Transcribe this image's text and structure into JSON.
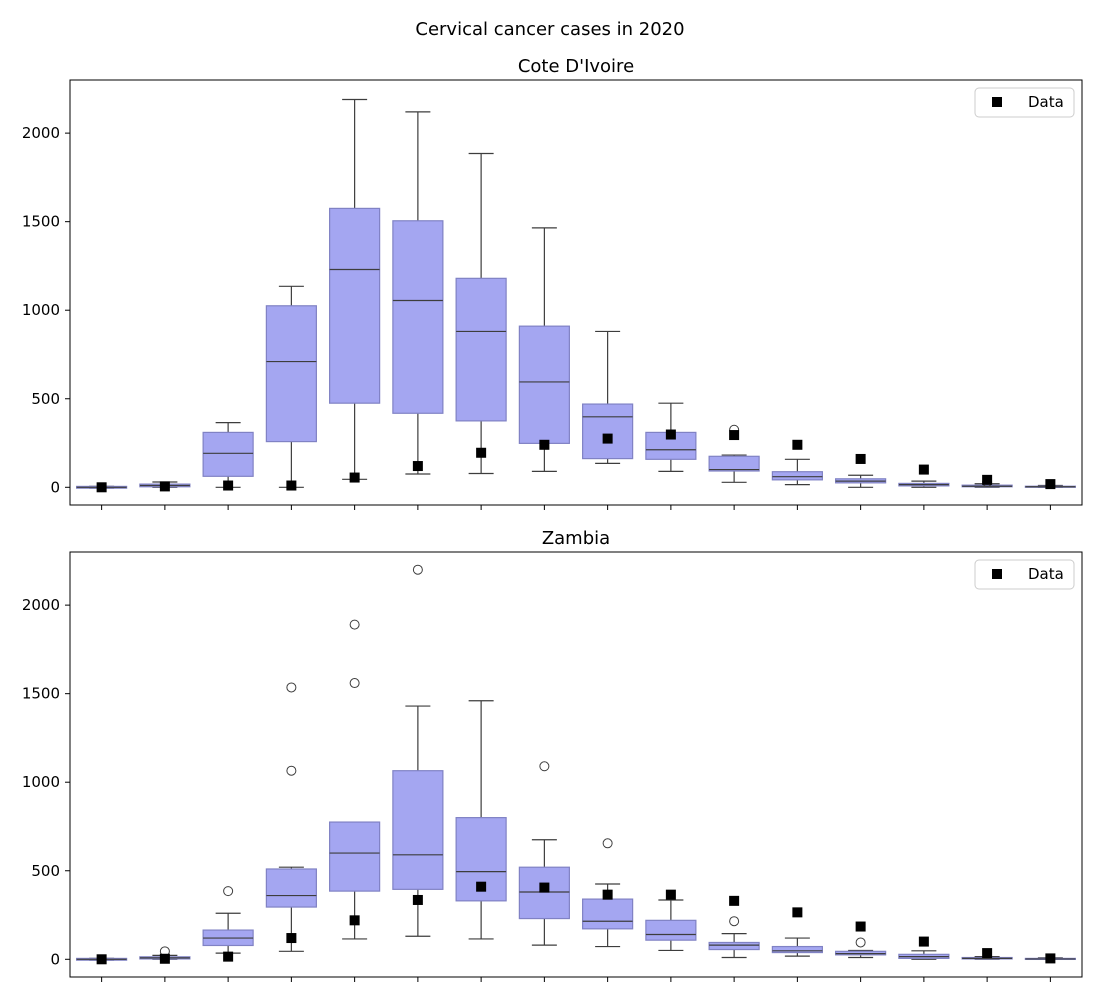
{
  "chart_data": {
    "title": "Cervical cancer cases in 2020",
    "type": "box",
    "colors": {
      "box_fill": "#a4a6f1",
      "box_edge": "#8082c4",
      "line": "#3d3d3d",
      "marker": "#000000"
    },
    "legend": {
      "label": "Data",
      "placement": "top-right"
    },
    "x_tick_labels_visible": false,
    "ylim": [
      -100,
      2300
    ],
    "yticks": [
      0,
      500,
      1000,
      1500,
      2000
    ],
    "panels": [
      {
        "title": "Cote D'Ivoire",
        "groups": [
          {
            "whislo": -5,
            "q1": -5,
            "med": 0,
            "q3": 5,
            "whishi": 5,
            "fliers": [],
            "data": 0
          },
          {
            "whislo": 0,
            "q1": 3,
            "med": 10,
            "q3": 18,
            "whishi": 30,
            "fliers": [],
            "data": 5
          },
          {
            "whislo": 0,
            "q1": 62,
            "med": 192,
            "q3": 310,
            "whishi": 365,
            "fliers": [],
            "data": 10
          },
          {
            "whislo": 0,
            "q1": 258,
            "med": 710,
            "q3": 1025,
            "whishi": 1135,
            "fliers": [],
            "data": 10
          },
          {
            "whislo": 45,
            "q1": 475,
            "med": 1230,
            "q3": 1575,
            "whishi": 2190,
            "fliers": [],
            "data": 55
          },
          {
            "whislo": 75,
            "q1": 418,
            "med": 1055,
            "q3": 1505,
            "whishi": 2120,
            "fliers": [],
            "data": 120
          },
          {
            "whislo": 78,
            "q1": 375,
            "med": 880,
            "q3": 1180,
            "whishi": 1885,
            "fliers": [],
            "data": 195
          },
          {
            "whislo": 90,
            "q1": 248,
            "med": 595,
            "q3": 910,
            "whishi": 1465,
            "fliers": [],
            "data": 240
          },
          {
            "whislo": 135,
            "q1": 162,
            "med": 398,
            "q3": 470,
            "whishi": 880,
            "fliers": [],
            "data": 275
          },
          {
            "whislo": 90,
            "q1": 158,
            "med": 212,
            "q3": 310,
            "whishi": 475,
            "fliers": [],
            "data": 298
          },
          {
            "whislo": 28,
            "q1": 92,
            "med": 100,
            "q3": 175,
            "whishi": 182,
            "fliers": [
              325
            ],
            "data": 295
          },
          {
            "whislo": 15,
            "q1": 42,
            "med": 60,
            "q3": 88,
            "whishi": 158,
            "fliers": [],
            "data": 240
          },
          {
            "whislo": 0,
            "q1": 25,
            "med": 35,
            "q3": 48,
            "whishi": 68,
            "fliers": [],
            "data": 160
          },
          {
            "whislo": 0,
            "q1": 8,
            "med": 15,
            "q3": 22,
            "whishi": 35,
            "fliers": [],
            "data": 100
          },
          {
            "whislo": 0,
            "q1": 3,
            "med": 6,
            "q3": 12,
            "whishi": 20,
            "fliers": [
              30
            ],
            "data": 42
          },
          {
            "whislo": 0,
            "q1": 0,
            "med": 3,
            "q3": 6,
            "whishi": 10,
            "fliers": [],
            "data": 18
          }
        ]
      },
      {
        "title": "Zambia",
        "groups": [
          {
            "whislo": -5,
            "q1": -5,
            "med": 0,
            "q3": 5,
            "whishi": 5,
            "fliers": [],
            "data": 0
          },
          {
            "whislo": 0,
            "q1": 2,
            "med": 8,
            "q3": 14,
            "whishi": 22,
            "fliers": [
              45
            ],
            "data": 3
          },
          {
            "whislo": 35,
            "q1": 78,
            "med": 120,
            "q3": 165,
            "whishi": 260,
            "fliers": [
              385
            ],
            "data": 15
          },
          {
            "whislo": 45,
            "q1": 295,
            "med": 360,
            "q3": 510,
            "whishi": 520,
            "fliers": [
              1065,
              1535
            ],
            "data": 120
          },
          {
            "whislo": 115,
            "q1": 385,
            "med": 600,
            "q3": 775,
            "whishi": 775,
            "fliers": [
              1560,
              1890
            ],
            "data": 220
          },
          {
            "whislo": 130,
            "q1": 395,
            "med": 590,
            "q3": 1065,
            "whishi": 1430,
            "fliers": [
              2200
            ],
            "data": 335
          },
          {
            "whislo": 115,
            "q1": 330,
            "med": 495,
            "q3": 800,
            "whishi": 1460,
            "fliers": [],
            "data": 410
          },
          {
            "whislo": 80,
            "q1": 230,
            "med": 380,
            "q3": 520,
            "whishi": 675,
            "fliers": [
              1090
            ],
            "data": 405
          },
          {
            "whislo": 72,
            "q1": 172,
            "med": 215,
            "q3": 340,
            "whishi": 425,
            "fliers": [
              655
            ],
            "data": 365
          },
          {
            "whislo": 50,
            "q1": 108,
            "med": 140,
            "q3": 220,
            "whishi": 335,
            "fliers": [],
            "data": 365
          },
          {
            "whislo": 10,
            "q1": 55,
            "med": 80,
            "q3": 95,
            "whishi": 145,
            "fliers": [
              215
            ],
            "data": 330
          },
          {
            "whislo": 18,
            "q1": 38,
            "med": 48,
            "q3": 72,
            "whishi": 120,
            "fliers": [],
            "data": 265
          },
          {
            "whislo": 10,
            "q1": 25,
            "med": 32,
            "q3": 45,
            "whishi": 50,
            "fliers": [
              95
            ],
            "data": 185
          },
          {
            "whislo": 0,
            "q1": 5,
            "med": 15,
            "q3": 28,
            "whishi": 48,
            "fliers": [],
            "data": 100
          },
          {
            "whislo": 0,
            "q1": 2,
            "med": 5,
            "q3": 10,
            "whishi": 15,
            "fliers": [],
            "data": 35
          },
          {
            "whislo": 0,
            "q1": 0,
            "med": 2,
            "q3": 5,
            "whishi": 8,
            "fliers": [],
            "data": 5
          }
        ]
      }
    ]
  }
}
